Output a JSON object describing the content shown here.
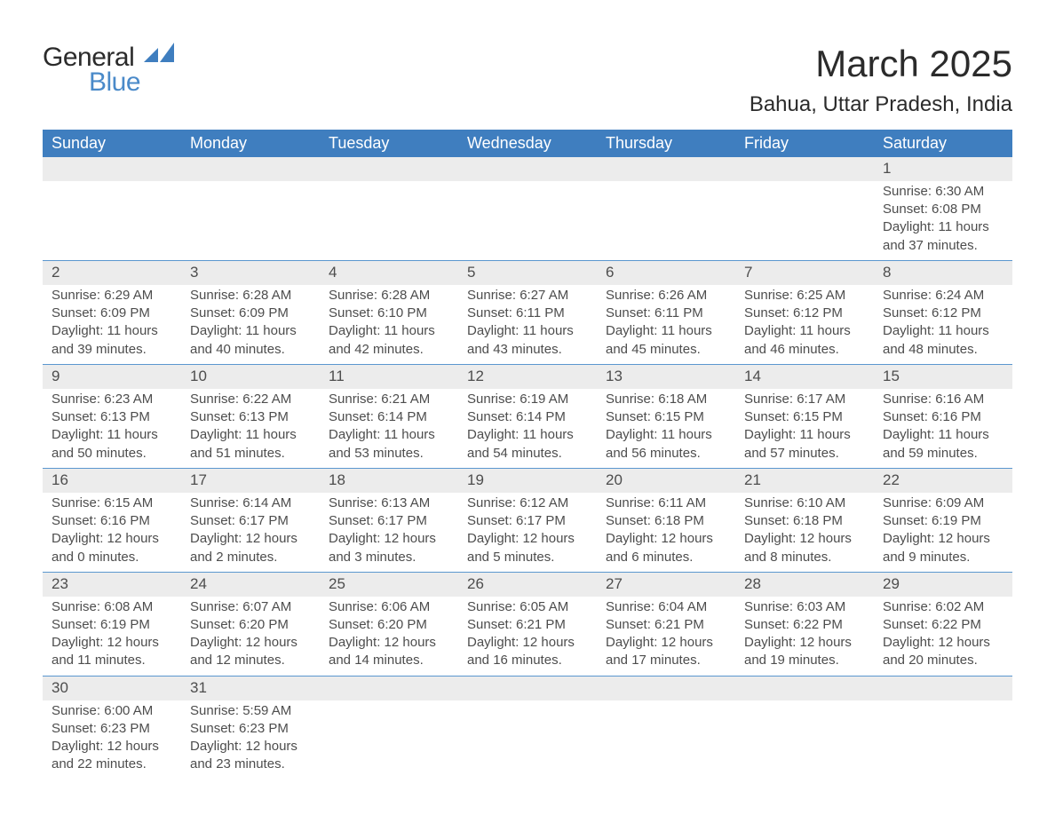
{
  "brand": {
    "word1": "General",
    "word2": "Blue",
    "accent": "#4a8ac9"
  },
  "header": {
    "title": "March 2025",
    "location": "Bahua, Uttar Pradesh, India"
  },
  "calendar": {
    "header_bg": "#3f7ebf",
    "header_fg": "#ffffff",
    "daynum_bg": "#ececec",
    "row_border": "#5b97cf",
    "text_color": "#4d4d4d",
    "columns": [
      "Sunday",
      "Monday",
      "Tuesday",
      "Wednesday",
      "Thursday",
      "Friday",
      "Saturday"
    ],
    "weeks": [
      [
        null,
        null,
        null,
        null,
        null,
        null,
        {
          "n": "1",
          "sunrise": "6:30 AM",
          "sunset": "6:08 PM",
          "daylight": "11 hours and 37 minutes."
        }
      ],
      [
        {
          "n": "2",
          "sunrise": "6:29 AM",
          "sunset": "6:09 PM",
          "daylight": "11 hours and 39 minutes."
        },
        {
          "n": "3",
          "sunrise": "6:28 AM",
          "sunset": "6:09 PM",
          "daylight": "11 hours and 40 minutes."
        },
        {
          "n": "4",
          "sunrise": "6:28 AM",
          "sunset": "6:10 PM",
          "daylight": "11 hours and 42 minutes."
        },
        {
          "n": "5",
          "sunrise": "6:27 AM",
          "sunset": "6:11 PM",
          "daylight": "11 hours and 43 minutes."
        },
        {
          "n": "6",
          "sunrise": "6:26 AM",
          "sunset": "6:11 PM",
          "daylight": "11 hours and 45 minutes."
        },
        {
          "n": "7",
          "sunrise": "6:25 AM",
          "sunset": "6:12 PM",
          "daylight": "11 hours and 46 minutes."
        },
        {
          "n": "8",
          "sunrise": "6:24 AM",
          "sunset": "6:12 PM",
          "daylight": "11 hours and 48 minutes."
        }
      ],
      [
        {
          "n": "9",
          "sunrise": "6:23 AM",
          "sunset": "6:13 PM",
          "daylight": "11 hours and 50 minutes."
        },
        {
          "n": "10",
          "sunrise": "6:22 AM",
          "sunset": "6:13 PM",
          "daylight": "11 hours and 51 minutes."
        },
        {
          "n": "11",
          "sunrise": "6:21 AM",
          "sunset": "6:14 PM",
          "daylight": "11 hours and 53 minutes."
        },
        {
          "n": "12",
          "sunrise": "6:19 AM",
          "sunset": "6:14 PM",
          "daylight": "11 hours and 54 minutes."
        },
        {
          "n": "13",
          "sunrise": "6:18 AM",
          "sunset": "6:15 PM",
          "daylight": "11 hours and 56 minutes."
        },
        {
          "n": "14",
          "sunrise": "6:17 AM",
          "sunset": "6:15 PM",
          "daylight": "11 hours and 57 minutes."
        },
        {
          "n": "15",
          "sunrise": "6:16 AM",
          "sunset": "6:16 PM",
          "daylight": "11 hours and 59 minutes."
        }
      ],
      [
        {
          "n": "16",
          "sunrise": "6:15 AM",
          "sunset": "6:16 PM",
          "daylight": "12 hours and 0 minutes."
        },
        {
          "n": "17",
          "sunrise": "6:14 AM",
          "sunset": "6:17 PM",
          "daylight": "12 hours and 2 minutes."
        },
        {
          "n": "18",
          "sunrise": "6:13 AM",
          "sunset": "6:17 PM",
          "daylight": "12 hours and 3 minutes."
        },
        {
          "n": "19",
          "sunrise": "6:12 AM",
          "sunset": "6:17 PM",
          "daylight": "12 hours and 5 minutes."
        },
        {
          "n": "20",
          "sunrise": "6:11 AM",
          "sunset": "6:18 PM",
          "daylight": "12 hours and 6 minutes."
        },
        {
          "n": "21",
          "sunrise": "6:10 AM",
          "sunset": "6:18 PM",
          "daylight": "12 hours and 8 minutes."
        },
        {
          "n": "22",
          "sunrise": "6:09 AM",
          "sunset": "6:19 PM",
          "daylight": "12 hours and 9 minutes."
        }
      ],
      [
        {
          "n": "23",
          "sunrise": "6:08 AM",
          "sunset": "6:19 PM",
          "daylight": "12 hours and 11 minutes."
        },
        {
          "n": "24",
          "sunrise": "6:07 AM",
          "sunset": "6:20 PM",
          "daylight": "12 hours and 12 minutes."
        },
        {
          "n": "25",
          "sunrise": "6:06 AM",
          "sunset": "6:20 PM",
          "daylight": "12 hours and 14 minutes."
        },
        {
          "n": "26",
          "sunrise": "6:05 AM",
          "sunset": "6:21 PM",
          "daylight": "12 hours and 16 minutes."
        },
        {
          "n": "27",
          "sunrise": "6:04 AM",
          "sunset": "6:21 PM",
          "daylight": "12 hours and 17 minutes."
        },
        {
          "n": "28",
          "sunrise": "6:03 AM",
          "sunset": "6:22 PM",
          "daylight": "12 hours and 19 minutes."
        },
        {
          "n": "29",
          "sunrise": "6:02 AM",
          "sunset": "6:22 PM",
          "daylight": "12 hours and 20 minutes."
        }
      ],
      [
        {
          "n": "30",
          "sunrise": "6:00 AM",
          "sunset": "6:23 PM",
          "daylight": "12 hours and 22 minutes."
        },
        {
          "n": "31",
          "sunrise": "5:59 AM",
          "sunset": "6:23 PM",
          "daylight": "12 hours and 23 minutes."
        },
        null,
        null,
        null,
        null,
        null
      ]
    ]
  },
  "labels": {
    "sunrise": "Sunrise: ",
    "sunset": "Sunset: ",
    "daylight": "Daylight: "
  }
}
